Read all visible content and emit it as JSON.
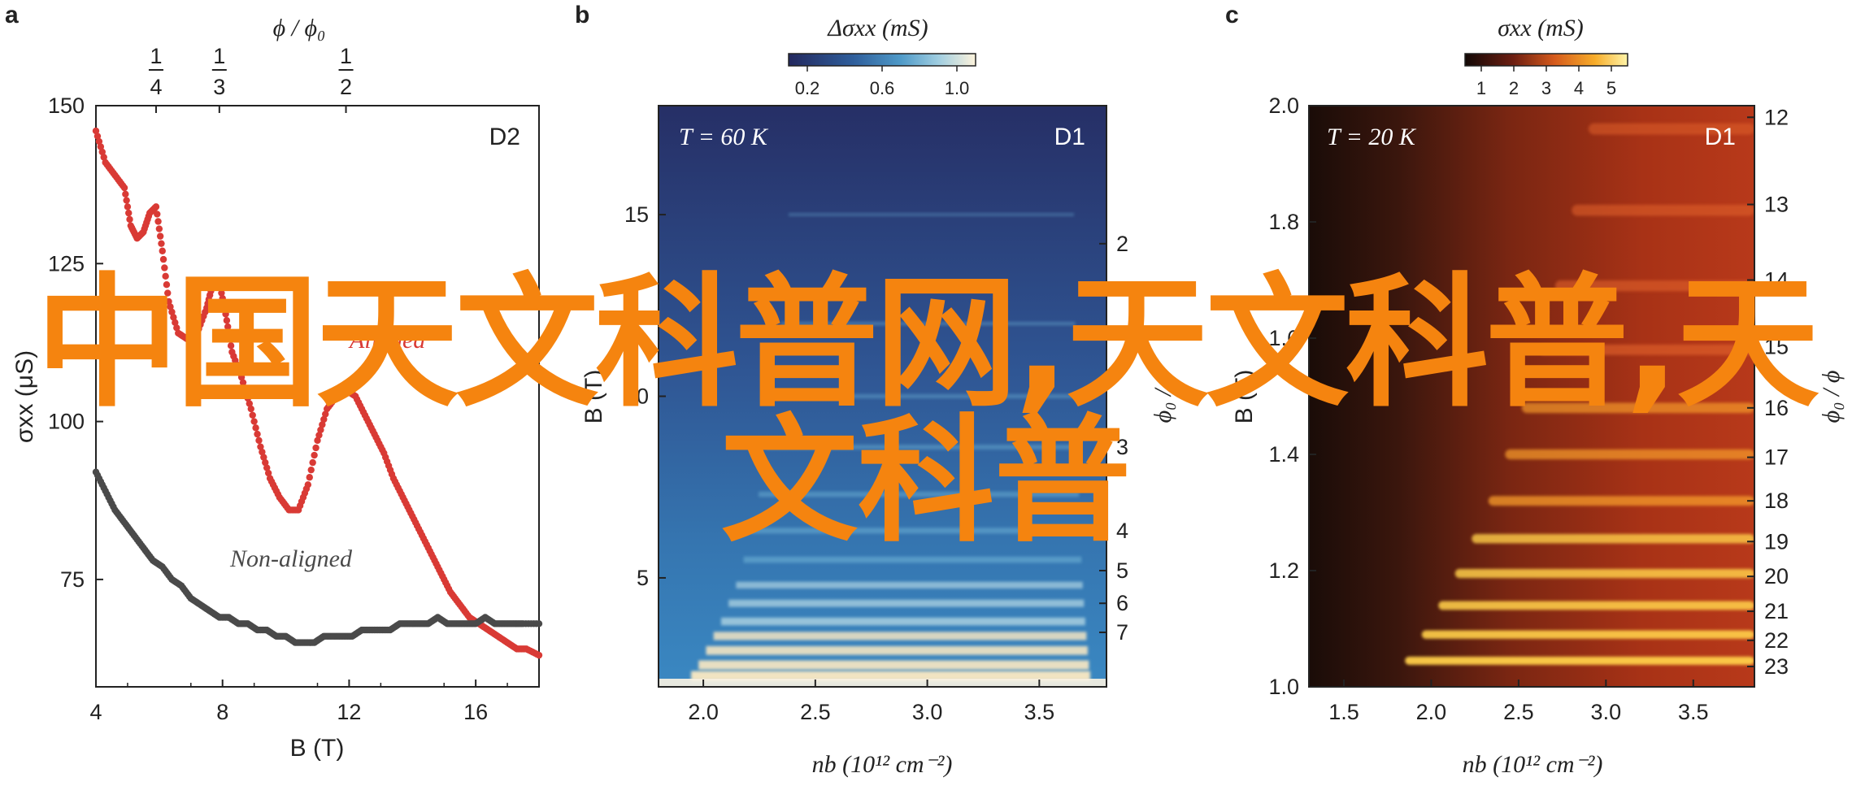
{
  "panels": {
    "a": {
      "letter": "a",
      "tag": "D2",
      "top_axis_label": "ϕ / ϕ₀",
      "top_ticks": [
        {
          "num": "1",
          "den": "4",
          "value": 5.9
        },
        {
          "num": "1",
          "den": "3",
          "value": 7.9
        },
        {
          "num": "1",
          "den": "2",
          "value": 11.9
        }
      ],
      "xlabel": "B (T)",
      "ylabel": "σxx (μS)",
      "series_labels": {
        "aligned": "Aligned",
        "non_aligned": "Non-aligned"
      },
      "colors": {
        "aligned": "#d93a35",
        "non_aligned": "#4a4a4a"
      }
    },
    "b": {
      "letter": "b",
      "tag": "D1",
      "temperature": "T = 60 K",
      "colorbar_label": "Δσxx (mS)",
      "colorbar_ticks": [
        "0.2",
        "0.6",
        "1.0"
      ],
      "xlabel": "nb (10¹² cm⁻²)",
      "ylabel": "B (T)",
      "right_label": "ϕ₀ / ϕ",
      "right_ticks": [
        "2",
        "3",
        "4",
        "5",
        "6",
        "7"
      ]
    },
    "c": {
      "letter": "c",
      "tag": "D1",
      "temperature": "T = 20 K",
      "colorbar_label": "σxx (mS)",
      "colorbar_ticks": [
        "1",
        "2",
        "3",
        "4",
        "5"
      ],
      "xlabel": "nb (10¹² cm⁻²)",
      "ylabel": "B (T)",
      "right_label": "ϕ₀ / ϕ",
      "right_ticks": [
        "12",
        "13",
        "14",
        "15",
        "16",
        "17",
        "18",
        "19",
        "20",
        "21",
        "22",
        "23"
      ]
    }
  },
  "overlay_text": {
    "line1": "中国天文科普网,天文科普,天",
    "line2": "文科普"
  },
  "chart_data": [
    {
      "type": "scatter",
      "panel": "a",
      "xlabel": "B (T)",
      "ylabel": "σxx (μS)",
      "xlim": [
        4,
        18
      ],
      "ylim": [
        58,
        150
      ],
      "x_ticks": [
        4,
        8,
        12,
        16
      ],
      "y_ticks": [
        75,
        100,
        125,
        150
      ],
      "series": [
        {
          "name": "Aligned",
          "x": [
            4.0,
            4.3,
            4.6,
            4.9,
            5.1,
            5.3,
            5.5,
            5.7,
            5.9,
            6.1,
            6.3,
            6.6,
            6.9,
            7.2,
            7.5,
            7.7,
            7.9,
            8.1,
            8.3,
            8.6,
            8.9,
            9.2,
            9.5,
            9.8,
            10.1,
            10.4,
            10.7,
            11.0,
            11.3,
            11.6,
            11.9,
            12.2,
            12.5,
            12.8,
            13.1,
            13.4,
            13.7,
            14.0,
            14.3,
            14.6,
            14.9,
            15.2,
            15.5,
            15.8,
            16.1,
            16.4,
            16.7,
            17.0,
            17.3,
            17.6,
            18.0
          ],
          "y": [
            146,
            141,
            139,
            137,
            131,
            129,
            130,
            133,
            134,
            127,
            119,
            114,
            113,
            114,
            118,
            122,
            122,
            117,
            111,
            107,
            102,
            96,
            91,
            88,
            86,
            86,
            90,
            97,
            102,
            104,
            105,
            104,
            101,
            98,
            95,
            91,
            88,
            85,
            82,
            79,
            76,
            73,
            71,
            69,
            68,
            67,
            66,
            65,
            64,
            64,
            63
          ]
        },
        {
          "name": "Non-aligned",
          "x": [
            4.0,
            4.3,
            4.6,
            4.9,
            5.2,
            5.5,
            5.8,
            6.1,
            6.4,
            6.7,
            7.0,
            7.3,
            7.6,
            7.9,
            8.2,
            8.5,
            8.8,
            9.1,
            9.4,
            9.7,
            10.0,
            10.3,
            10.6,
            10.9,
            11.2,
            11.5,
            11.8,
            12.1,
            12.4,
            12.7,
            13.0,
            13.3,
            13.6,
            13.9,
            14.2,
            14.5,
            14.8,
            15.1,
            15.4,
            15.7,
            16.0,
            16.3,
            16.6,
            16.9,
            17.2,
            17.5,
            18.0
          ],
          "y": [
            92,
            89,
            86,
            84,
            82,
            80,
            78,
            77,
            75,
            74,
            72,
            71,
            70,
            69,
            69,
            68,
            68,
            67,
            67,
            66,
            66,
            65,
            65,
            65,
            66,
            66,
            66,
            66,
            67,
            67,
            67,
            67,
            68,
            68,
            68,
            68,
            69,
            68,
            68,
            68,
            68,
            69,
            68,
            68,
            68,
            68,
            68
          ]
        }
      ]
    },
    {
      "type": "heatmap",
      "panel": "b",
      "xlabel": "nb (10¹² cm⁻²)",
      "ylabel": "B (T)",
      "xlim": [
        1.8,
        3.8
      ],
      "ylim": [
        2,
        18
      ],
      "x_ticks": [
        2.0,
        2.5,
        3.0,
        3.5
      ],
      "y_ticks": [
        5,
        10,
        15
      ],
      "colorbar": {
        "label": "Δσxx (mS)",
        "range": [
          0.1,
          1.1
        ],
        "ticks": [
          0.2,
          0.6,
          1.0
        ]
      },
      "bands_B": [
        2.3,
        2.6,
        3.0,
        3.4,
        3.8,
        4.3,
        4.8,
        5.5,
        6.3,
        7.3,
        8.6,
        10.0,
        12.0,
        15.0
      ],
      "right_axis": {
        "label": "ϕ₀ / ϕ",
        "ticks": [
          {
            "label": "2",
            "B": 14.2
          },
          {
            "label": "3",
            "B": 8.6
          },
          {
            "label": "4",
            "B": 6.3
          },
          {
            "label": "5",
            "B": 5.2
          },
          {
            "label": "6",
            "B": 4.3
          },
          {
            "label": "7",
            "B": 3.5
          }
        ]
      }
    },
    {
      "type": "heatmap",
      "panel": "c",
      "xlabel": "nb (10¹² cm⁻²)",
      "ylabel": "B (T)",
      "xlim": [
        1.3,
        3.85
      ],
      "ylim": [
        1.0,
        2.0
      ],
      "x_ticks": [
        1.5,
        2.0,
        2.5,
        3.0,
        3.5
      ],
      "y_ticks": [
        1.0,
        1.2,
        1.4,
        1.6,
        1.8,
        2.0
      ],
      "colorbar": {
        "label": "σxx (mS)",
        "range": [
          0.5,
          5.5
        ],
        "ticks": [
          1,
          2,
          3,
          4,
          5
        ]
      },
      "bands_B": [
        1.96,
        1.82,
        1.69,
        1.58,
        1.48,
        1.4,
        1.32,
        1.255,
        1.195,
        1.14,
        1.09,
        1.045
      ],
      "right_axis": {
        "label": "ϕ₀ / ϕ",
        "ticks": [
          {
            "label": "12",
            "B": 1.98
          },
          {
            "label": "13",
            "B": 1.83
          },
          {
            "label": "14",
            "B": 1.7
          },
          {
            "label": "15",
            "B": 1.585
          },
          {
            "label": "16",
            "B": 1.48
          },
          {
            "label": "17",
            "B": 1.395
          },
          {
            "label": "18",
            "B": 1.32
          },
          {
            "label": "19",
            "B": 1.25
          },
          {
            "label": "20",
            "B": 1.19
          },
          {
            "label": "21",
            "B": 1.13
          },
          {
            "label": "22",
            "B": 1.08
          },
          {
            "label": "23",
            "B": 1.035
          }
        ]
      }
    }
  ]
}
